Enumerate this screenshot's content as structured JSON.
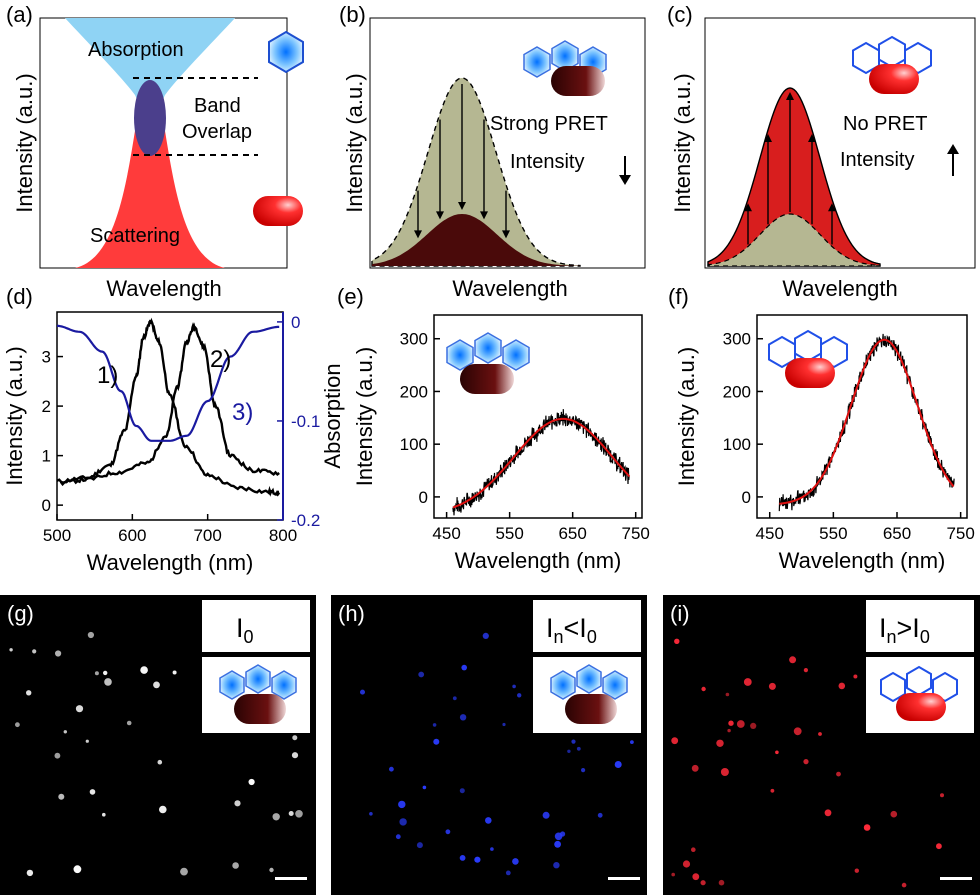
{
  "panels": {
    "a": {
      "letter": "(a)",
      "xlabel": "Wavelength",
      "ylabel": "Intensity (a.u.)",
      "absorption": "Absorption",
      "band": "Band",
      "overlap": "Overlap",
      "scattering": "Scattering"
    },
    "b": {
      "letter": "(b)",
      "xlabel": "Wavelength",
      "ylabel": "Intensity (a.u.)",
      "pret": "Strong PRET",
      "intensity": "Intensity"
    },
    "c": {
      "letter": "(c)",
      "xlabel": "Wavelength",
      "ylabel": "Intensity (a.u.)",
      "pret": "No PRET",
      "intensity": "Intensity"
    },
    "g": {
      "letter": "(g)",
      "label_main": "I",
      "label_sub": "0"
    },
    "h": {
      "letter": "(h)",
      "label_main": "I",
      "label_sub": "n",
      "label_mid": "<I",
      "label_sub2": "0"
    },
    "i": {
      "letter": "(i)",
      "label_main": "I",
      "label_sub": "n",
      "label_mid": ">I",
      "label_sub2": "0"
    }
  },
  "colors": {
    "absorption": "#8fd3f4",
    "scattering": "#ff3b3b",
    "overlap": "#4b3f8c",
    "olive": "#b5b792",
    "dark_red": "#4a0a0a",
    "red_fill": "#d81e1e",
    "blue_axis": "#1a1aa0",
    "spectra": "#000000",
    "fit": "#e01010",
    "dots_g": "#ffffff",
    "dots_h": "#2a3cff",
    "dots_i": "#ff2a3a"
  },
  "icons": {
    "dye": "hexagon-dye-icon",
    "rod": "gold-nanorod-icon"
  },
  "chart_data": [
    {
      "id": "d",
      "type": "line",
      "panel_letter": "(d)",
      "xlabel": "Wavelength (nm)",
      "ylabel": "Intensity (a.u.)",
      "y2label": "Absorption",
      "xlim": [
        500,
        800
      ],
      "ylim": [
        -0.3,
        3.9
      ],
      "y2lim": [
        -0.2,
        0.01
      ],
      "x_ticks": [
        500,
        600,
        700,
        800
      ],
      "y_ticks": [
        0,
        1,
        2,
        3
      ],
      "y2_ticks": [
        "0",
        "-0.1",
        "-0.2"
      ],
      "series": [
        {
          "name": "1)",
          "axis": "left",
          "x": [
            500,
            540,
            570,
            590,
            605,
            615,
            624,
            635,
            650,
            670,
            700,
            740,
            780,
            795
          ],
          "y": [
            0.48,
            0.55,
            0.8,
            1.5,
            2.6,
            3.4,
            3.7,
            3.3,
            2.2,
            1.2,
            0.6,
            0.35,
            0.27,
            0.25
          ]
        },
        {
          "name": "2)",
          "axis": "left",
          "x": [
            505,
            540,
            580,
            620,
            645,
            660,
            672,
            682,
            695,
            710,
            730,
            760,
            795
          ],
          "y": [
            0.45,
            0.52,
            0.66,
            0.85,
            1.4,
            2.4,
            3.3,
            3.6,
            3.2,
            2.0,
            1.0,
            0.7,
            0.65
          ]
        },
        {
          "name": "3)",
          "axis": "right",
          "x": [
            500,
            530,
            560,
            585,
            605,
            625,
            650,
            672,
            700,
            730,
            760,
            795
          ],
          "y": [
            -0.004,
            -0.01,
            -0.03,
            -0.07,
            -0.105,
            -0.12,
            -0.12,
            -0.115,
            -0.08,
            -0.035,
            -0.01,
            -0.005
          ]
        }
      ]
    },
    {
      "id": "e",
      "type": "line",
      "panel_letter": "(e)",
      "xlabel": "Wavelength (nm)",
      "ylabel": "Intensity (a.u.)",
      "xlim": [
        430,
        760
      ],
      "ylim": [
        -40,
        345
      ],
      "x_ticks": [
        450,
        550,
        650,
        750
      ],
      "y_ticks": [
        0,
        100,
        200,
        300
      ],
      "series": [
        {
          "name": "measured",
          "peak_x": 635,
          "peak_y": 148,
          "sigma": 78,
          "offset": -35,
          "noise": 14,
          "x_range": [
            460,
            740
          ]
        },
        {
          "name": "fit",
          "peak_x": 635,
          "peak_y": 148,
          "sigma": 78,
          "offset": -35,
          "x_range": [
            460,
            740
          ]
        }
      ]
    },
    {
      "id": "f",
      "type": "line",
      "panel_letter": "(f)",
      "xlabel": "Wavelength (nm)",
      "ylabel": "Intensity (a.u.)",
      "xlim": [
        430,
        760
      ],
      "ylim": [
        -40,
        345
      ],
      "x_ticks": [
        450,
        550,
        650,
        750
      ],
      "y_ticks": [
        0,
        100,
        200,
        300
      ],
      "series": [
        {
          "name": "measured",
          "peak_x": 630,
          "peak_y": 298,
          "sigma": 52,
          "offset": -15,
          "noise": 14,
          "x_range": [
            465,
            740
          ]
        },
        {
          "name": "fit",
          "peak_x": 630,
          "peak_y": 298,
          "sigma": 52,
          "offset": -15,
          "x_range": [
            465,
            740
          ]
        }
      ]
    }
  ]
}
